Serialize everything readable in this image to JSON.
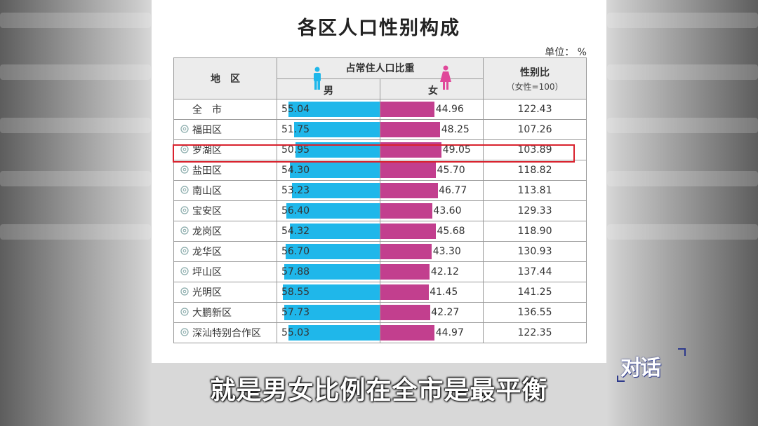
{
  "title": "各区人口性别构成",
  "unit": "单位： %",
  "headers": {
    "region": "地　区",
    "share": "占常住人口比重",
    "male": "男",
    "female": "女",
    "ratio": "性别比",
    "ratio_sub": "（女性=100）"
  },
  "colors": {
    "male": "#1fb7ea",
    "female": "#c23f8e",
    "highlight": "#d9222e"
  },
  "highlighted_region": "罗湖区",
  "chart_data": {
    "type": "bar",
    "title": "各区人口性别构成",
    "categories": [
      "全　市",
      "福田区",
      "罗湖区",
      "盐田区",
      "南山区",
      "宝安区",
      "龙岗区",
      "龙华区",
      "坪山区",
      "光明区",
      "大鹏新区",
      "深汕特别合作区"
    ],
    "series": [
      {
        "name": "男",
        "values": [
          55.04,
          51.75,
          50.95,
          54.3,
          53.23,
          56.4,
          54.32,
          56.7,
          57.88,
          58.55,
          57.73,
          55.03
        ],
        "labels": [
          "55.04",
          "51.75",
          "50.95",
          "54.30",
          "53.23",
          "56.40",
          "54.32",
          "56.70",
          "57.88",
          "58.55",
          "57.73",
          "55.03"
        ]
      },
      {
        "name": "女",
        "values": [
          44.96,
          48.25,
          49.05,
          45.7,
          46.77,
          43.6,
          45.68,
          43.3,
          42.12,
          41.45,
          42.27,
          44.97
        ],
        "labels": [
          "44.96",
          "48.25",
          "49.05",
          "45.70",
          "46.77",
          "43.60",
          "45.68",
          "43.30",
          "42.12",
          "41.45",
          "42.27",
          "44.97"
        ]
      }
    ],
    "sex_ratio_header": "性别比",
    "sex_ratio": [
      "122.43",
      "107.26",
      "103.89",
      "118.82",
      "113.81",
      "129.33",
      "118.90",
      "130.93",
      "137.44",
      "141.25",
      "136.55",
      "122.35"
    ],
    "pin_icon_rows": [
      false,
      true,
      true,
      true,
      true,
      true,
      true,
      true,
      true,
      true,
      true,
      true
    ]
  },
  "subtitle": "就是男女比例在全市是最平衡",
  "logo": {
    "text": "对话",
    "icon": "duihua-logo-icon"
  }
}
